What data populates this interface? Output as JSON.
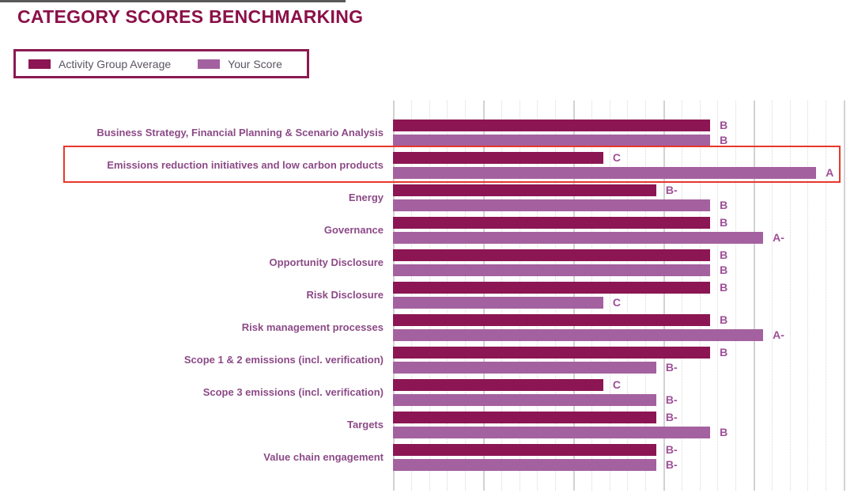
{
  "title": "CATEGORY SCORES BENCHMARKING",
  "legend": {
    "items": [
      {
        "label": "Activity Group Average",
        "color": "#8C1653"
      },
      {
        "label": "Your Score",
        "color": "#A4619F"
      }
    ]
  },
  "colors": {
    "title": "#8B1048",
    "category_label": "#8C4A87",
    "grade_label": "#9E4F97",
    "legend_text": "#5B5462",
    "legend_border": "#8B1A52",
    "highlight_box": "#E8372C",
    "gridline": "#D6D6D6",
    "background": "#FFFFFF"
  },
  "chart_data": {
    "type": "bar",
    "orientation": "horizontal",
    "title": "CATEGORY SCORES BENCHMARKING",
    "series": [
      "Activity Group Average",
      "Your Score"
    ],
    "series_colors": [
      "#8C1653",
      "#A4619F"
    ],
    "grade_axis": {
      "note": "bar length encodes letter grade",
      "order": [
        "C",
        "B-",
        "B",
        "A-",
        "A"
      ],
      "length_pct": {
        "C": 45.6,
        "B-": 57.1,
        "B": 68.8,
        "A-": 80.3,
        "A": 91.8
      }
    },
    "categories": [
      {
        "label": "Business Strategy, Financial Planning & Scenario Analysis",
        "activity_group_average": "B",
        "your_score": "B",
        "highlighted": false
      },
      {
        "label": "Emissions reduction initiatives and low carbon products",
        "activity_group_average": "C",
        "your_score": "A",
        "highlighted": true
      },
      {
        "label": "Energy",
        "activity_group_average": "B-",
        "your_score": "B",
        "highlighted": false
      },
      {
        "label": "Governance",
        "activity_group_average": "B",
        "your_score": "A-",
        "highlighted": false
      },
      {
        "label": "Opportunity Disclosure",
        "activity_group_average": "B",
        "your_score": "B",
        "highlighted": false
      },
      {
        "label": "Risk Disclosure",
        "activity_group_average": "B",
        "your_score": "C",
        "highlighted": false
      },
      {
        "label": "Risk management processes",
        "activity_group_average": "B",
        "your_score": "A-",
        "highlighted": false
      },
      {
        "label": "Scope 1 & 2 emissions (incl. verification)",
        "activity_group_average": "B",
        "your_score": "B-",
        "highlighted": false
      },
      {
        "label": "Scope 3 emissions (incl. verification)",
        "activity_group_average": "C",
        "your_score": "B-",
        "highlighted": false
      },
      {
        "label": "Targets",
        "activity_group_average": "B-",
        "your_score": "B",
        "highlighted": false
      },
      {
        "label": "Value chain engagement",
        "activity_group_average": "B-",
        "your_score": "B-",
        "highlighted": false
      }
    ],
    "gridlines": {
      "major_count": 6,
      "minors_between_majors": 4,
      "style": "solid light-gray majors, dotted minors"
    },
    "legend_position": "top-left"
  }
}
